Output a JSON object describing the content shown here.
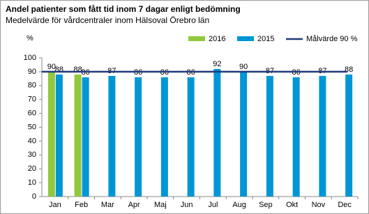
{
  "chart_data": {
    "type": "bar",
    "title": "Andel patienter som fått tid inom 7 dagar enligt bedömning",
    "subtitle": "Medelvärde för vårdcentraler inom Hälsoval Örebro län",
    "y_axis_label": "%",
    "categories": [
      "Jan",
      "Feb",
      "Mar",
      "Apr",
      "Maj",
      "Jun",
      "Jul",
      "Aug",
      "Sep",
      "Okt",
      "Nov",
      "Dec"
    ],
    "series": [
      {
        "name": "2016",
        "color": "#92c83e",
        "values": [
          90,
          88,
          null,
          null,
          null,
          null,
          null,
          null,
          null,
          null,
          null,
          null
        ]
      },
      {
        "name": "2015",
        "color": "#0096d6",
        "values": [
          88,
          86,
          87,
          86,
          86,
          86,
          92,
          90,
          87,
          86,
          87,
          88
        ]
      }
    ],
    "target": {
      "name": "Målvärde 90 %",
      "color": "#1f3a7a",
      "value": 90
    },
    "ylim": [
      0,
      100
    ],
    "yticks": [
      0,
      10,
      20,
      30,
      40,
      50,
      60,
      70,
      80,
      90,
      100
    ],
    "legend": "top-right"
  }
}
